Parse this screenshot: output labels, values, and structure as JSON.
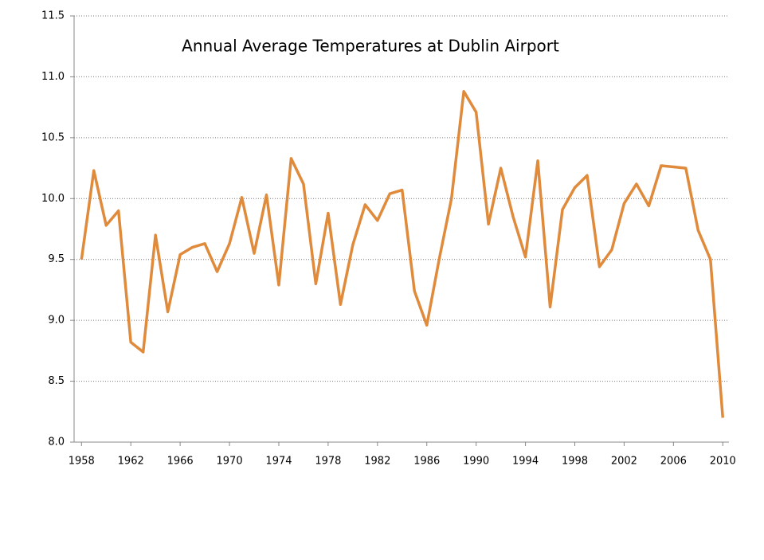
{
  "chart_data": {
    "type": "line",
    "title": "Annual Average Temperatures at Dublin Airport",
    "x": [
      1958,
      1959,
      1960,
      1961,
      1962,
      1963,
      1964,
      1965,
      1966,
      1967,
      1968,
      1969,
      1970,
      1971,
      1972,
      1973,
      1974,
      1975,
      1976,
      1977,
      1978,
      1979,
      1980,
      1981,
      1982,
      1983,
      1984,
      1985,
      1986,
      1987,
      1988,
      1989,
      1990,
      1991,
      1992,
      1993,
      1994,
      1995,
      1996,
      1997,
      1998,
      1999,
      2000,
      2001,
      2002,
      2003,
      2004,
      2005,
      2006,
      2007,
      2008,
      2009,
      2010
    ],
    "series": [
      {
        "color": "#e08a3c",
        "values": [
          9.5,
          10.23,
          9.78,
          9.9,
          8.82,
          8.74,
          9.7,
          9.07,
          9.54,
          9.6,
          9.63,
          9.4,
          9.63,
          10.01,
          9.55,
          10.03,
          9.29,
          10.33,
          10.12,
          9.3,
          9.88,
          9.13,
          9.62,
          9.95,
          9.82,
          10.04,
          10.07,
          9.24,
          8.96,
          9.5,
          10.0,
          10.88,
          10.71,
          9.79,
          10.25,
          9.85,
          9.52,
          10.31,
          9.11,
          9.91,
          10.09,
          10.19,
          9.44,
          9.58,
          9.96,
          10.12,
          9.94,
          10.27,
          10.26,
          10.25,
          9.74,
          9.5,
          8.2
        ]
      }
    ],
    "xlim": [
      1957.4,
      2010.5
    ],
    "xticks": [
      1958,
      1962,
      1966,
      1970,
      1974,
      1978,
      1982,
      1986,
      1990,
      1994,
      1998,
      2002,
      2006,
      2010
    ],
    "ylim": [
      8.0,
      11.5
    ],
    "yticks": [
      {
        "value": 8.0,
        "label": "8.0"
      },
      {
        "value": 8.5,
        "label": "8.5"
      },
      {
        "value": 9.0,
        "label": "9.0"
      },
      {
        "value": 9.5,
        "label": "9.5"
      },
      {
        "value": 10.0,
        "label": "10.0"
      },
      {
        "value": 10.5,
        "label": "10.5"
      },
      {
        "value": 11.0,
        "label": "11.0"
      },
      {
        "value": 11.5,
        "label": "11.5"
      }
    ],
    "grid": true
  }
}
